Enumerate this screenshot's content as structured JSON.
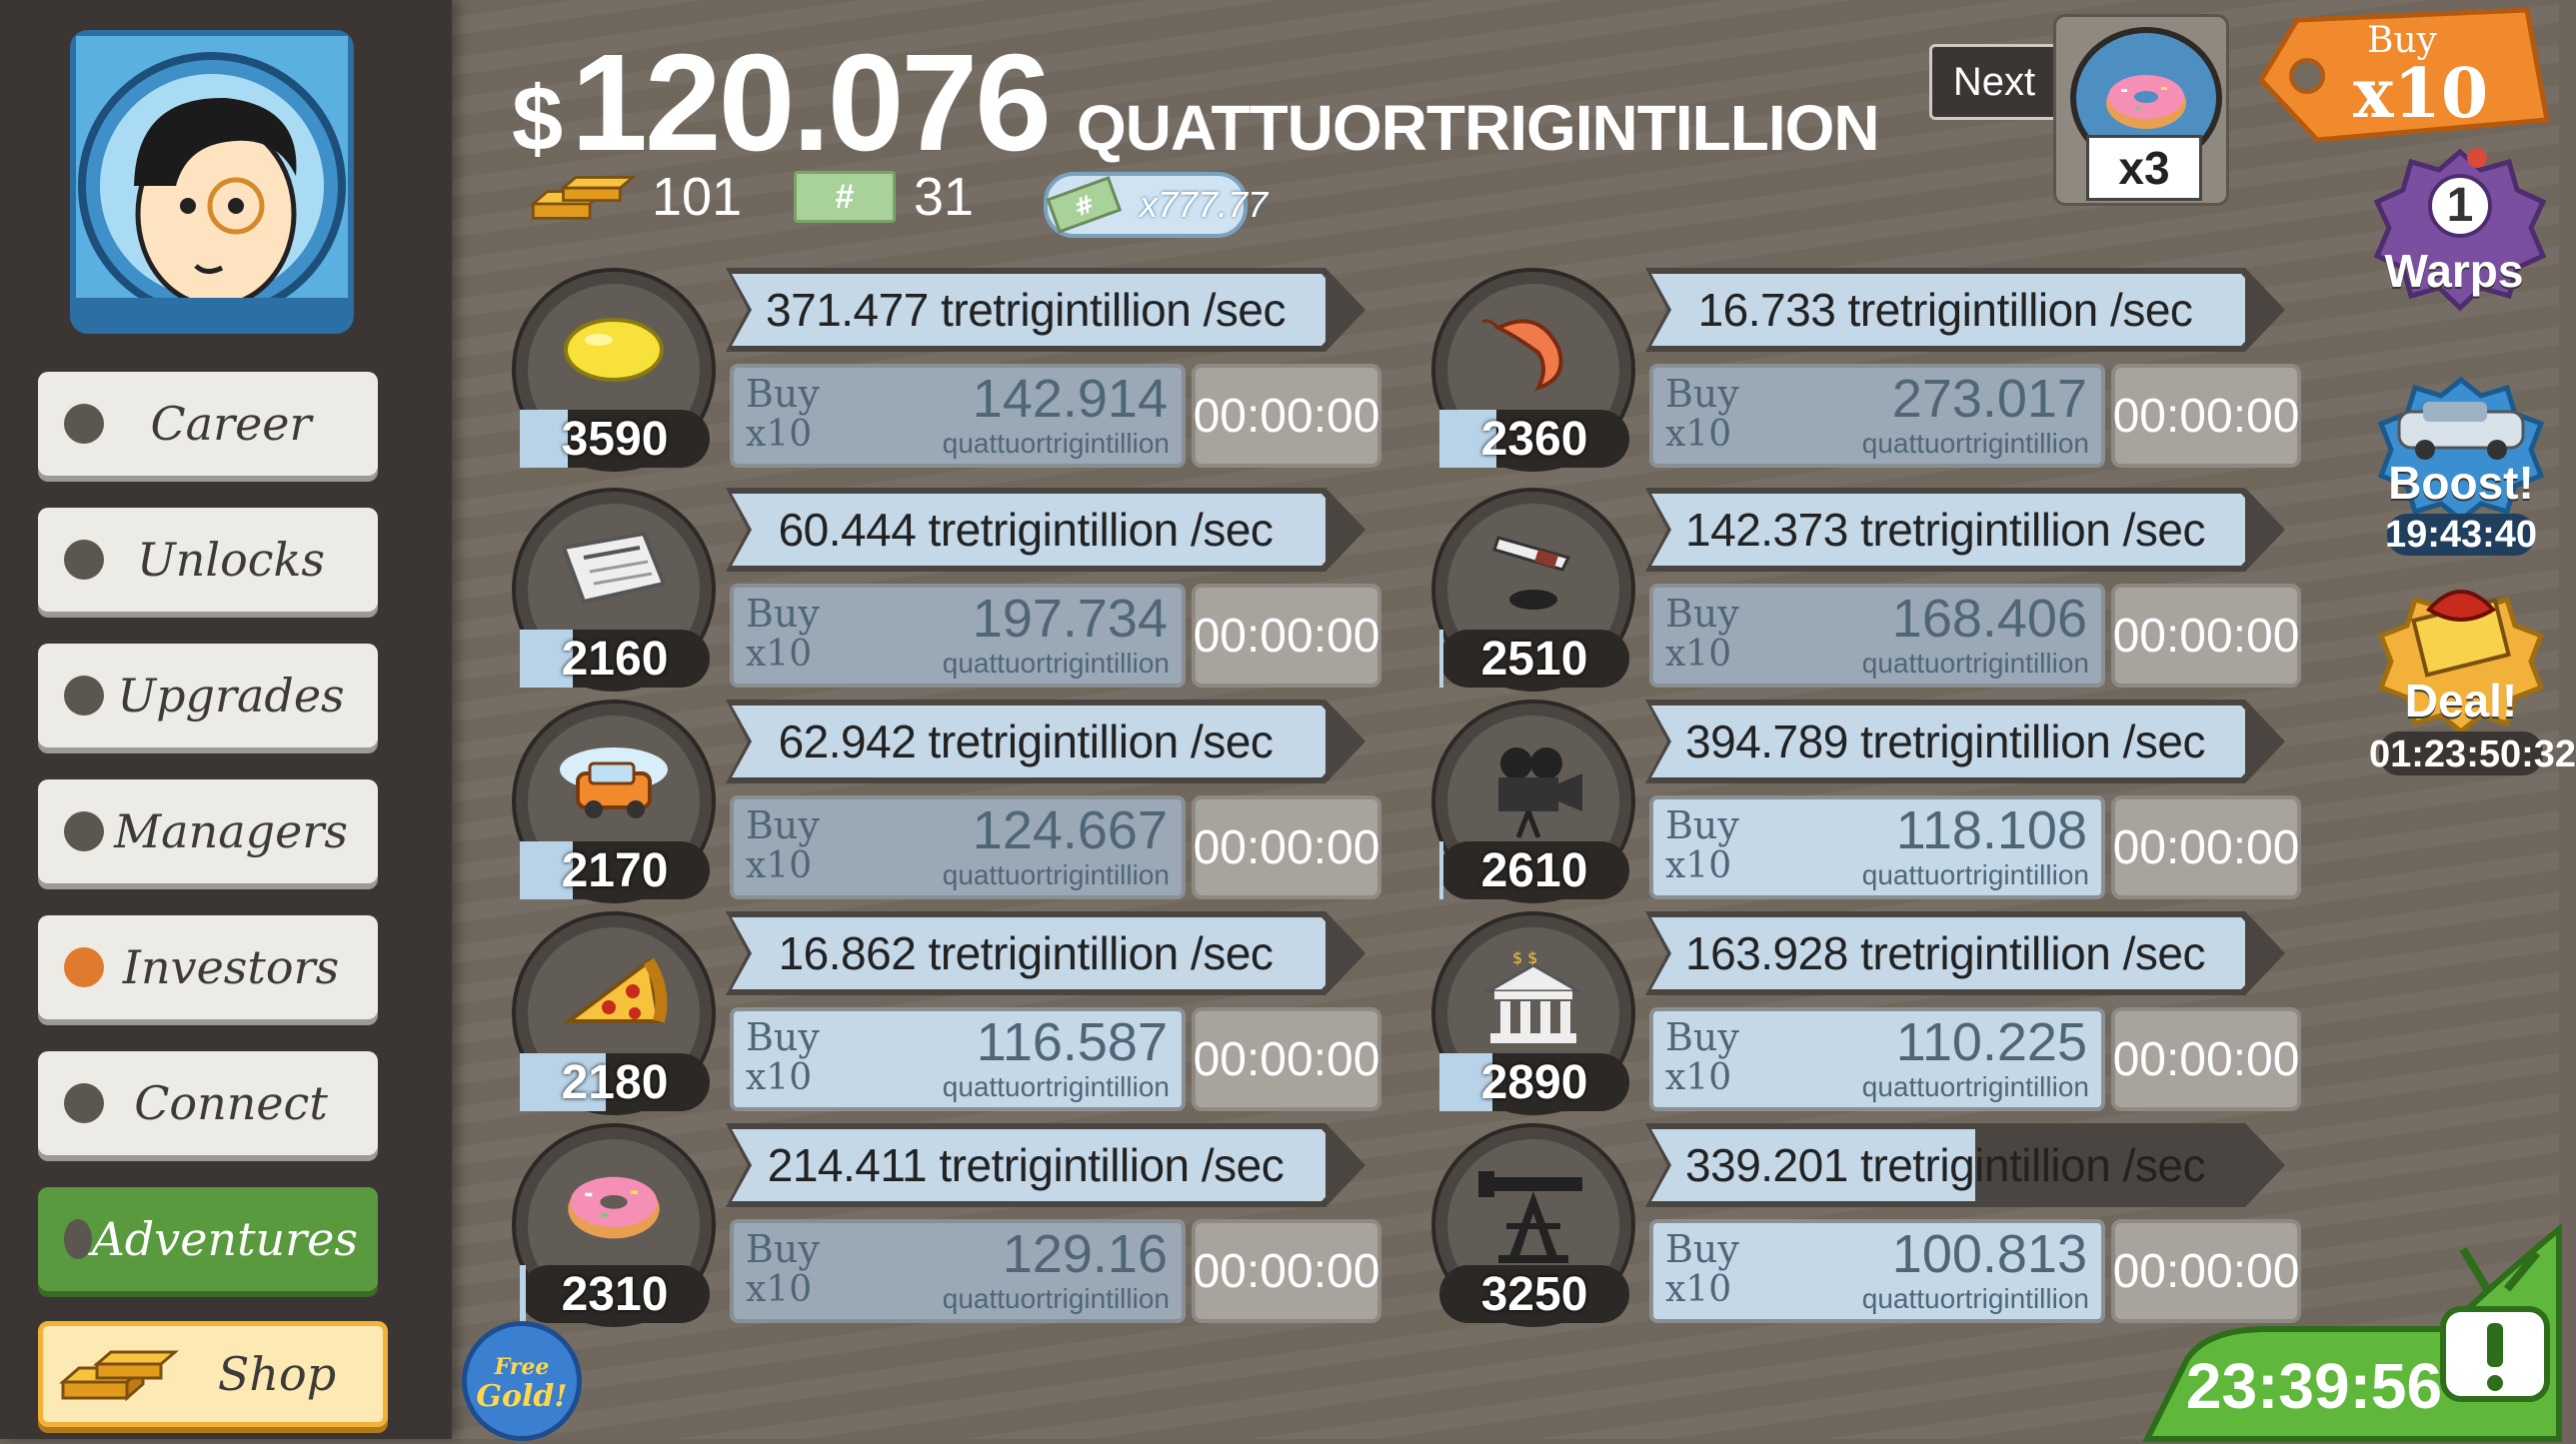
{
  "header": {
    "currency_symbol": "$",
    "money_value": "120.076",
    "money_unit": "QUATTUORTRIGINTILLION",
    "gold_count": "101",
    "megabucks_count": "31",
    "megabucks_symbol": "#",
    "multiplier_text": "x777.77"
  },
  "next_unlock": {
    "button_label": "Next",
    "multiplier": "x3",
    "icon": "donut-icon"
  },
  "buy_mode": {
    "label_top": "Buy",
    "label_bottom": "x10"
  },
  "sidebar": {
    "items": [
      {
        "label": "Career",
        "icon": "dot"
      },
      {
        "label": "Unlocks",
        "icon": "dot"
      },
      {
        "label": "Upgrades",
        "icon": "dot"
      },
      {
        "label": "Managers",
        "icon": "dot"
      },
      {
        "label": "Investors",
        "icon": "dot-orange"
      },
      {
        "label": "Connect",
        "icon": "dot"
      },
      {
        "label": "Adventures",
        "icon": "dot"
      },
      {
        "label": "Shop",
        "icon": "gold-bars-icon"
      }
    ]
  },
  "widgets": {
    "warps_count": "1",
    "warps_label": "Warps",
    "boost_label": "Boost!",
    "boost_timer": "19:43:40",
    "deal_label": "Deal!",
    "deal_timer": "01:23:50:32",
    "free_gold_line1": "Free",
    "free_gold_line2": "Gold!",
    "tv_timer": "23:39:56"
  },
  "colors": {
    "accent_blue": "#c4d8e8",
    "active_green": "#5a9a3e",
    "tag_orange": "#f08a2c",
    "warps_purple": "#7b4fa0",
    "boost_blue": "#3b8fd0",
    "deal_gold": "#f2b13a"
  },
  "businesses": [
    {
      "icon": "lemon-icon",
      "owned": "3590",
      "progress": 0.25,
      "rate": "371.477 tretrigintillion /sec",
      "rate_progress": 1.0,
      "buy_top": "Buy",
      "buy_bottom": "x10",
      "cost": "142.914",
      "cost_unit": "quattuortrigintillion",
      "affordable": false,
      "timer": "00:00:00"
    },
    {
      "icon": "shrimp-icon",
      "owned": "2360",
      "progress": 0.3,
      "rate": "16.733 tretrigintillion /sec",
      "rate_progress": 1.0,
      "buy_top": "Buy",
      "buy_bottom": "x10",
      "cost": "273.017",
      "cost_unit": "quattuortrigintillion",
      "affordable": false,
      "timer": "00:00:00"
    },
    {
      "icon": "newspaper-icon",
      "owned": "2160",
      "progress": 0.28,
      "rate": "60.444 tretrigintillion /sec",
      "rate_progress": 1.0,
      "buy_top": "Buy",
      "buy_bottom": "x10",
      "cost": "197.734",
      "cost_unit": "quattuortrigintillion",
      "affordable": false,
      "timer": "00:00:00"
    },
    {
      "icon": "hockey-icon",
      "owned": "2510",
      "progress": 0.02,
      "rate": "142.373 tretrigintillion /sec",
      "rate_progress": 1.0,
      "buy_top": "Buy",
      "buy_bottom": "x10",
      "cost": "168.406",
      "cost_unit": "quattuortrigintillion",
      "affordable": false,
      "timer": "00:00:00"
    },
    {
      "icon": "car-wash-icon",
      "owned": "2170",
      "progress": 0.28,
      "rate": "62.942 tretrigintillion /sec",
      "rate_progress": 1.0,
      "buy_top": "Buy",
      "buy_bottom": "x10",
      "cost": "124.667",
      "cost_unit": "quattuortrigintillion",
      "affordable": false,
      "timer": "00:00:00"
    },
    {
      "icon": "movie-camera-icon",
      "owned": "2610",
      "progress": 0.02,
      "rate": "394.789 tretrigintillion /sec",
      "rate_progress": 1.0,
      "buy_top": "Buy",
      "buy_bottom": "x10",
      "cost": "118.108",
      "cost_unit": "quattuortrigintillion",
      "affordable": true,
      "timer": "00:00:00"
    },
    {
      "icon": "pizza-icon",
      "owned": "2180",
      "progress": 0.45,
      "rate": "16.862 tretrigintillion /sec",
      "rate_progress": 1.0,
      "buy_top": "Buy",
      "buy_bottom": "x10",
      "cost": "116.587",
      "cost_unit": "quattuortrigintillion",
      "affordable": true,
      "timer": "00:00:00"
    },
    {
      "icon": "bank-icon",
      "owned": "2890",
      "progress": 0.28,
      "rate": "163.928 tretrigintillion /sec",
      "rate_progress": 1.0,
      "buy_top": "Buy",
      "buy_bottom": "x10",
      "cost": "110.225",
      "cost_unit": "quattuortrigintillion",
      "affordable": true,
      "timer": "00:00:00"
    },
    {
      "icon": "donut-icon",
      "owned": "2310",
      "progress": 0.03,
      "rate": "214.411 tretrigintillion /sec",
      "rate_progress": 1.0,
      "buy_top": "Buy",
      "buy_bottom": "x10",
      "cost": "129.16",
      "cost_unit": "quattuortrigintillion",
      "affordable": false,
      "timer": "00:00:00"
    },
    {
      "icon": "oil-rig-icon",
      "owned": "3250",
      "progress": 0.0,
      "rate": "339.201 tretrigintillion /sec",
      "rate_progress": 0.55,
      "buy_top": "Buy",
      "buy_bottom": "x10",
      "cost": "100.813",
      "cost_unit": "quattuortrigintillion",
      "affordable": true,
      "timer": "00:00:00"
    }
  ]
}
